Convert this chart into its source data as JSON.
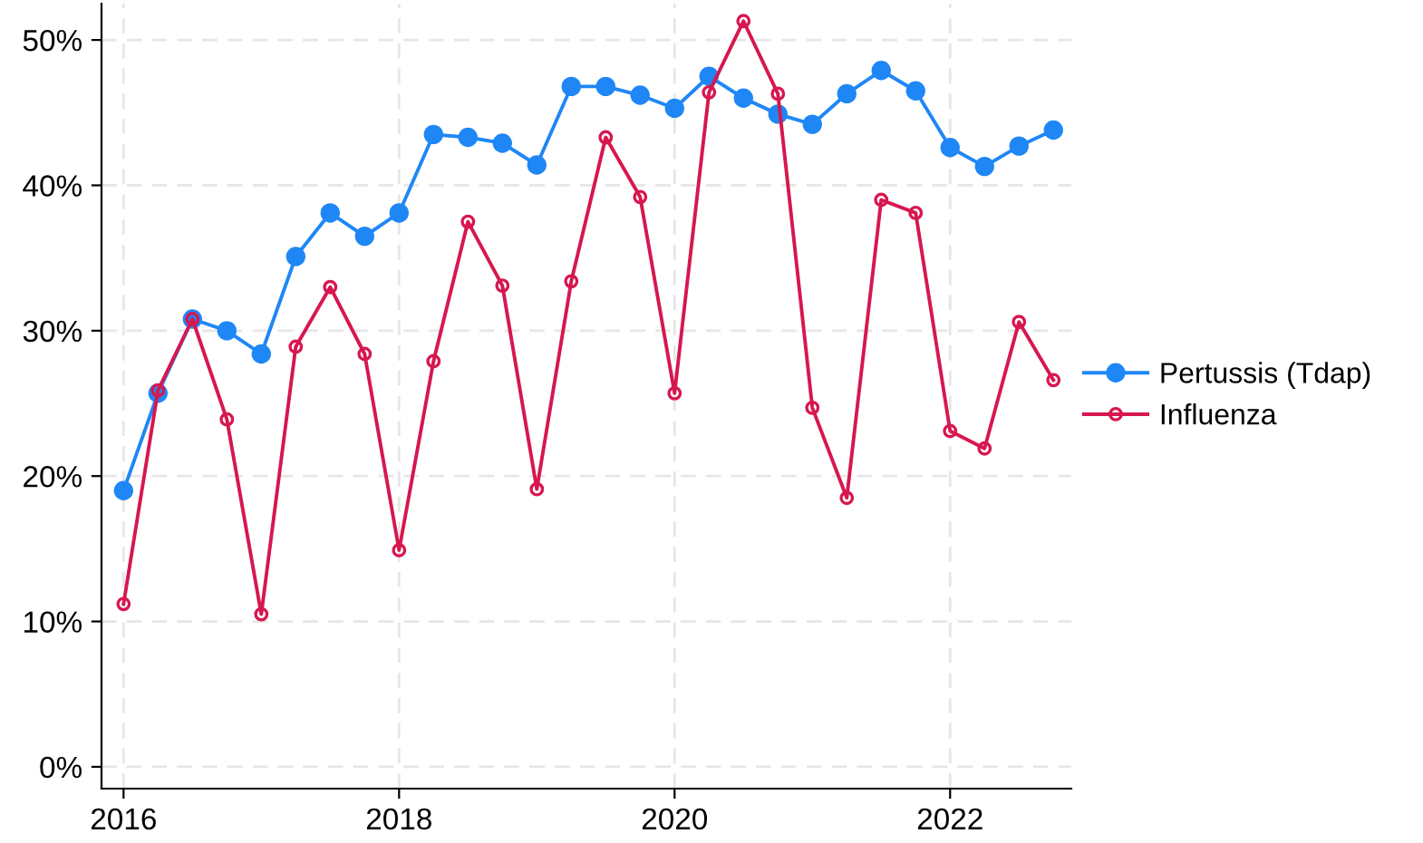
{
  "chart_data": {
    "type": "line",
    "x": [
      2016.0,
      2016.25,
      2016.5,
      2016.75,
      2017.0,
      2017.25,
      2017.5,
      2017.75,
      2018.0,
      2018.25,
      2018.5,
      2018.75,
      2019.0,
      2019.25,
      2019.5,
      2019.75,
      2020.0,
      2020.25,
      2020.5,
      2020.75,
      2021.0,
      2021.25,
      2021.5,
      2021.75,
      2022.0,
      2022.25,
      2022.5,
      2022.75
    ],
    "series": [
      {
        "name": "Pertussis (Tdap)",
        "color": "#1f87f5",
        "marker": "circle",
        "values": [
          19.0,
          25.7,
          30.8,
          30.0,
          28.4,
          35.1,
          38.1,
          36.5,
          38.1,
          43.5,
          43.3,
          42.9,
          41.4,
          46.8,
          46.8,
          46.2,
          45.3,
          47.5,
          46.0,
          44.9,
          44.2,
          46.3,
          47.9,
          46.5,
          42.6,
          41.3,
          42.7,
          43.8
        ]
      },
      {
        "name": "Influenza",
        "color": "#d7174f",
        "marker": "open circle",
        "values": [
          11.2,
          25.9,
          30.8,
          23.9,
          10.5,
          28.9,
          33.0,
          28.4,
          14.9,
          27.9,
          37.5,
          33.1,
          19.1,
          33.4,
          43.3,
          39.2,
          25.7,
          46.4,
          51.3,
          46.3,
          24.7,
          18.5,
          39.0,
          38.1,
          23.1,
          21.9,
          30.6,
          26.6
        ]
      }
    ],
    "xlim": [
      2015.84,
      2022.88
    ],
    "xticks": [
      2016,
      2018,
      2020,
      2022
    ],
    "ylim": [
      -1.5,
      52.5
    ],
    "yticks": [
      {
        "value": 0,
        "label": "0%"
      },
      {
        "value": 10,
        "label": "10%"
      },
      {
        "value": 20,
        "label": "20%"
      },
      {
        "value": 30,
        "label": "30%"
      },
      {
        "value": 40,
        "label": "40%"
      },
      {
        "value": 50,
        "label": "50%"
      }
    ],
    "grid": true,
    "legend": "right",
    "line_style": "solid"
  }
}
